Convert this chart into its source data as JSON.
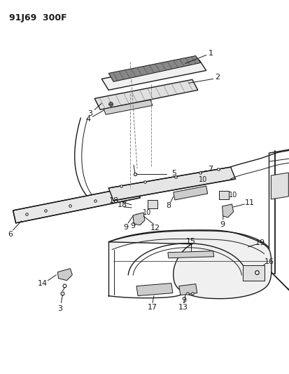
{
  "title": "91J69  300F",
  "bg": "#ffffff",
  "lc": "#1a1a1a",
  "figsize": [
    4.14,
    5.33
  ],
  "dpi": 100
}
